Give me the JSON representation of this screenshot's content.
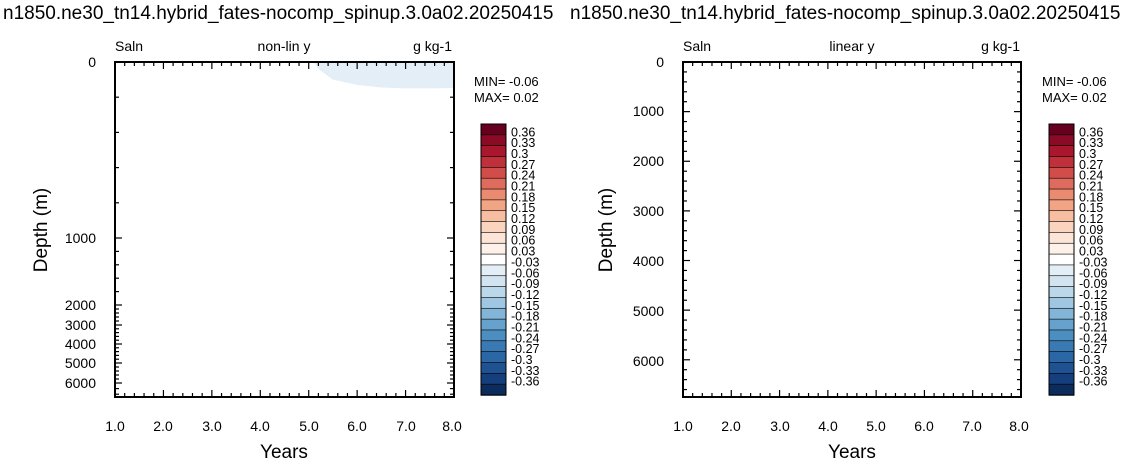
{
  "chart_data": [
    {
      "type": "heatmap",
      "title": "n1850.ne30_tn14.hybrid_fates-nocomp_spinup.3.0a02.20250415",
      "left_label": "Saln",
      "center_label": "non-lin y",
      "right_label": "g kg-1",
      "xlabel": "Years",
      "ylabel": "Depth (m)",
      "xlim": [
        1.0,
        8.0
      ],
      "xticks": [
        "1.0",
        "2.0",
        "3.0",
        "4.0",
        "5.0",
        "6.0",
        "7.0",
        "8.0"
      ],
      "y_scale": "non-linear",
      "ylim": [
        0,
        6500
      ],
      "yticks": [
        0,
        1000,
        2000,
        3000,
        4000,
        5000,
        6000
      ],
      "ytick_labels": [
        "0",
        "1000",
        "2000",
        "3000",
        "4000",
        "5000",
        "6000"
      ],
      "min_label": "MIN= -0.06",
      "max_label": "MAX=  0.02",
      "field_value_range": [
        -0.06,
        0.02
      ],
      "shaded_region": {
        "level": "-0.03 to 0",
        "color": "#e4eef6",
        "years": [
          5.1,
          8.0
        ],
        "bottom_depth_profile": [
          [
            5.1,
            0
          ],
          [
            5.2,
            40
          ],
          [
            5.5,
            100
          ],
          [
            6.0,
            130
          ],
          [
            6.5,
            145
          ],
          [
            7.0,
            150
          ],
          [
            7.5,
            150
          ],
          [
            8.0,
            148
          ]
        ]
      }
    },
    {
      "type": "heatmap",
      "title": "n1850.ne30_tn14.hybrid_fates-nocomp_spinup.3.0a02.20250415",
      "left_label": "Saln",
      "center_label": "linear y",
      "right_label": "g kg-1",
      "xlabel": "Years",
      "ylabel": "Depth (m)",
      "xlim": [
        1.0,
        8.0
      ],
      "xticks": [
        "1.0",
        "2.0",
        "3.0",
        "4.0",
        "5.0",
        "6.0",
        "7.0",
        "8.0"
      ],
      "y_scale": "linear",
      "ylim": [
        0,
        6750
      ],
      "yticks": [
        0,
        1000,
        2000,
        3000,
        4000,
        5000,
        6000
      ],
      "ytick_labels": [
        "0",
        "1000",
        "2000",
        "3000",
        "4000",
        "5000",
        "6000"
      ],
      "min_label": "MIN= -0.06",
      "max_label": "MAX=  0.02",
      "field_value_range": [
        -0.06,
        0.02
      ],
      "shaded_region": null
    }
  ],
  "colorbar": {
    "labels": [
      "0.36",
      "0.33",
      "0.3",
      "0.27",
      "0.24",
      "0.21",
      "0.18",
      "0.15",
      "0.12",
      "0.09",
      "0.06",
      "0.03",
      "-0.03",
      "-0.06",
      "-0.09",
      "-0.12",
      "-0.15",
      "-0.18",
      "-0.21",
      "-0.24",
      "-0.27",
      "-0.3",
      "-0.33",
      "-0.36"
    ],
    "colors": [
      "#67001f",
      "#8b0a26",
      "#a8172e",
      "#c0303a",
      "#d14d4a",
      "#de6b5d",
      "#ea8a70",
      "#f2a585",
      "#f7bea1",
      "#fad4bf",
      "#fce4d6",
      "#fdf1ea",
      "#ffffff",
      "#e4eef6",
      "#d2e4f0",
      "#bbd7ea",
      "#9fc7e2",
      "#83b5d8",
      "#66a2cc",
      "#4c8ec0",
      "#3a7ab4",
      "#2b66a5",
      "#1f5293",
      "#153e7d",
      "#0c2c5e"
    ]
  }
}
